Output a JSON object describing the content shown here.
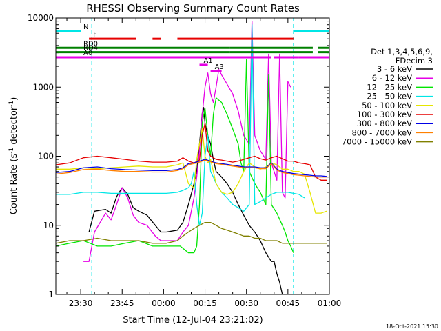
{
  "chart_data": {
    "type": "line",
    "title": "RHESSI Observing Summary Count Rates",
    "xlabel": "Start Time (12-Jul-04 23:21:02)",
    "ylabel_main": "Count Rate (s",
    "ylabel_sup": "-1",
    "ylabel_mid": " detector",
    "ylabel_sup2": "-1",
    "ylabel_end": ")",
    "x_unit": "minutes from 23:21:02",
    "xlim": [
      0,
      99
    ],
    "ylim": [
      1,
      10000
    ],
    "y_scale": "log",
    "x_ticks": [
      {
        "x": 9,
        "label": "23:30"
      },
      {
        "x": 24,
        "label": "23:45"
      },
      {
        "x": 39,
        "label": "00:00"
      },
      {
        "x": 54,
        "label": "00:15"
      },
      {
        "x": 69,
        "label": "00:30"
      },
      {
        "x": 84,
        "label": "00:45"
      },
      {
        "x": 99,
        "label": "01:00"
      }
    ],
    "y_ticks": [
      {
        "y": 1,
        "label": "1"
      },
      {
        "y": 10,
        "label": "10"
      },
      {
        "y": 100,
        "label": "100"
      },
      {
        "y": 1000,
        "label": "1000"
      },
      {
        "y": 10000,
        "label": "10000"
      }
    ],
    "legend": {
      "placement": "right",
      "header1": "Det 1,3,4,5,6,9,",
      "header2": "FDecim 3"
    },
    "series": [
      {
        "name": "3 - 6 keV",
        "color": "#000000",
        "x": [
          0,
          10,
          12,
          14,
          18,
          20,
          22,
          24,
          26,
          28,
          30,
          33,
          36,
          38,
          40,
          44,
          46,
          48,
          50,
          51,
          52,
          53,
          53.5,
          54,
          55,
          56,
          57,
          58,
          60,
          62,
          64,
          66,
          68,
          70,
          72,
          74,
          76,
          78,
          79,
          80,
          81,
          82,
          83,
          84,
          85,
          86,
          88,
          90,
          92,
          95,
          98
        ],
        "y": [
          null,
          null,
          8,
          16,
          17,
          15,
          26,
          35,
          28,
          18,
          16,
          14,
          10,
          8,
          8,
          8.5,
          11,
          20,
          40,
          60,
          150,
          420,
          510,
          300,
          200,
          150,
          90,
          60,
          50,
          40,
          30,
          20,
          14,
          10,
          8,
          6,
          4,
          3,
          3,
          2,
          1.5,
          1,
          1,
          null,
          null,
          null,
          null,
          null,
          null,
          null,
          null
        ]
      },
      {
        "name": "6 - 12 keV",
        "color": "#e600e6",
        "x": [
          0,
          10,
          12,
          14,
          18,
          20,
          22,
          24,
          26,
          28,
          30,
          33,
          36,
          38,
          40,
          44,
          46,
          48,
          50,
          51,
          52,
          53,
          54,
          55,
          56,
          57,
          58,
          59,
          60,
          62,
          64,
          66,
          68,
          70,
          71,
          72,
          74,
          76,
          77,
          78,
          79,
          80,
          81,
          82,
          83,
          84,
          85,
          86,
          88,
          90,
          92,
          95,
          98
        ],
        "y": [
          null,
          3,
          3,
          8,
          15,
          12,
          20,
          35,
          25,
          14,
          11,
          10,
          7,
          6,
          6,
          6,
          8,
          10,
          25,
          50,
          120,
          400,
          1000,
          1600,
          800,
          600,
          1000,
          1800,
          1500,
          1100,
          800,
          450,
          200,
          150,
          9000,
          200,
          120,
          90,
          3000,
          80,
          60,
          45,
          3000,
          30,
          25,
          1200,
          1000,
          null,
          null,
          null,
          null,
          null,
          null
        ]
      },
      {
        "name": "12 - 25 keV",
        "color": "#00e600",
        "x": [
          0,
          5,
          10,
          15,
          20,
          25,
          30,
          35,
          40,
          45,
          48,
          50,
          51,
          52,
          53,
          54,
          55,
          56,
          57,
          58,
          60,
          62,
          64,
          66,
          67,
          68,
          69,
          70,
          72,
          74,
          76,
          77,
          78,
          80,
          82,
          83,
          84,
          85,
          86,
          88,
          90,
          92,
          95,
          98
        ],
        "y": [
          5,
          5.5,
          6,
          5,
          5,
          5.5,
          6,
          5,
          5,
          5,
          4,
          4,
          5,
          20,
          300,
          500,
          200,
          100,
          400,
          700,
          600,
          400,
          250,
          150,
          80,
          60,
          2500,
          60,
          40,
          30,
          20,
          1500,
          20,
          15,
          10,
          8,
          6,
          5,
          4,
          null,
          null,
          null,
          null,
          null
        ]
      },
      {
        "name": "25 - 50 keV",
        "color": "#00e6e6",
        "x": [
          0,
          5,
          10,
          15,
          20,
          25,
          30,
          35,
          40,
          44,
          46,
          48,
          49,
          50,
          51,
          52,
          53,
          54,
          55,
          56,
          57,
          58,
          60,
          62,
          64,
          66,
          68,
          70,
          71,
          72,
          74,
          76,
          78,
          80,
          84,
          88,
          90,
          92,
          95,
          98
        ],
        "y": [
          28,
          28,
          30,
          30,
          29,
          29,
          29,
          29,
          29,
          30,
          32,
          35,
          40,
          60,
          20,
          10,
          15,
          100,
          200,
          60,
          50,
          40,
          30,
          25,
          20,
          18,
          16,
          20,
          8000,
          20,
          22,
          25,
          28,
          30,
          30,
          28,
          25,
          null,
          null,
          null
        ]
      },
      {
        "name": "50 - 100 keV",
        "color": "#e6e600",
        "x": [
          0,
          5,
          10,
          15,
          20,
          25,
          30,
          35,
          40,
          44,
          46,
          48,
          50,
          51,
          52,
          53,
          54,
          55,
          56,
          57,
          58,
          60,
          62,
          64,
          66,
          68,
          70,
          72,
          74,
          76,
          78,
          80,
          82,
          84,
          86,
          88,
          90,
          92,
          94,
          96,
          98
        ],
        "y": [
          65,
          65,
          68,
          66,
          68,
          70,
          72,
          70,
          70,
          75,
          80,
          40,
          35,
          90,
          150,
          250,
          100,
          80,
          90,
          60,
          40,
          30,
          28,
          30,
          40,
          60,
          80,
          70,
          65,
          70,
          80,
          75,
          65,
          65,
          60,
          60,
          55,
          30,
          15,
          15,
          16
        ]
      },
      {
        "name": "100 - 300 keV",
        "color": "#e60000",
        "x": [
          0,
          5,
          10,
          15,
          20,
          25,
          30,
          35,
          40,
          44,
          46,
          48,
          50,
          52,
          53,
          54,
          55,
          56,
          57,
          58,
          60,
          62,
          64,
          66,
          68,
          70,
          72,
          74,
          76,
          78,
          80,
          82,
          84,
          86,
          88,
          90,
          92,
          94,
          96,
          98
        ],
        "y": [
          75,
          80,
          95,
          100,
          95,
          90,
          85,
          82,
          82,
          85,
          95,
          85,
          80,
          88,
          200,
          300,
          120,
          100,
          95,
          90,
          88,
          85,
          82,
          85,
          90,
          95,
          100,
          92,
          88,
          95,
          100,
          92,
          85,
          85,
          80,
          78,
          75,
          50,
          45,
          45
        ]
      },
      {
        "name": "300 - 800 keV",
        "color": "#0000e6",
        "x": [
          0,
          5,
          10,
          15,
          20,
          25,
          30,
          35,
          40,
          44,
          46,
          48,
          50,
          52,
          54,
          56,
          58,
          60,
          62,
          64,
          66,
          68,
          70,
          72,
          74,
          76,
          78,
          80,
          82,
          84,
          86,
          88,
          90,
          92,
          94,
          96,
          98
        ],
        "y": [
          58,
          60,
          68,
          70,
          66,
          64,
          63,
          62,
          62,
          64,
          68,
          78,
          80,
          85,
          90,
          85,
          80,
          78,
          76,
          74,
          72,
          70,
          70,
          70,
          68,
          68,
          80,
          65,
          60,
          58,
          56,
          55,
          54,
          53,
          52,
          52,
          51
        ]
      },
      {
        "name": "800 - 7000 keV",
        "color": "#ff8000",
        "x": [
          0,
          5,
          10,
          15,
          20,
          25,
          30,
          35,
          40,
          44,
          46,
          48,
          50,
          52,
          54,
          56,
          58,
          60,
          62,
          64,
          66,
          68,
          70,
          72,
          74,
          76,
          78,
          80,
          82,
          84,
          86,
          88,
          90,
          92,
          94,
          96,
          98
        ],
        "y": [
          55,
          58,
          64,
          65,
          62,
          60,
          60,
          59,
          59,
          62,
          66,
          75,
          78,
          82,
          88,
          83,
          78,
          76,
          74,
          72,
          70,
          68,
          68,
          68,
          66,
          66,
          78,
          63,
          58,
          56,
          54,
          53,
          52,
          51,
          50,
          50,
          50
        ]
      },
      {
        "name": "7000 - 15000 keV",
        "color": "#808000",
        "x": [
          0,
          5,
          10,
          15,
          20,
          25,
          30,
          35,
          40,
          44,
          46,
          48,
          50,
          52,
          54,
          56,
          58,
          60,
          62,
          64,
          66,
          68,
          70,
          72,
          74,
          76,
          78,
          80,
          82,
          84,
          86,
          88,
          90,
          92,
          94,
          96,
          98
        ],
        "y": [
          5.5,
          6,
          6,
          6.5,
          6,
          6,
          6,
          5.5,
          5.5,
          6,
          7,
          8,
          9,
          10,
          11,
          11,
          10,
          9,
          8.5,
          8,
          7.5,
          7,
          7,
          6.5,
          6.5,
          6,
          6,
          6,
          5.5,
          5.5,
          5.5,
          5.5,
          5.5,
          5.5,
          5.5,
          5.5,
          5.5
        ]
      }
    ],
    "state_bars": [
      {
        "label": "N",
        "color": "#00e6e6",
        "level": 6500,
        "segments": [
          [
            0,
            9
          ],
          [
            86,
            99
          ]
        ]
      },
      {
        "label": "F",
        "color": "#e60000",
        "level": 5000,
        "segments": [
          [
            12,
            29
          ],
          [
            35,
            38
          ],
          [
            44,
            86
          ]
        ]
      },
      {
        "label": "RD0",
        "color": "#008000",
        "level": 3700,
        "segments": [
          [
            0,
            63
          ],
          [
            63,
            93
          ],
          [
            95,
            99
          ]
        ]
      },
      {
        "label": "RD4",
        "color": "#008000",
        "level": 3200,
        "segments": [
          [
            0,
            63
          ],
          [
            63,
            93
          ],
          [
            95,
            99
          ]
        ]
      },
      {
        "label": "A0",
        "color": "#e600e6",
        "level": 2700,
        "segments": [
          [
            0,
            55
          ],
          [
            55,
            78
          ],
          [
            79,
            88
          ],
          [
            88,
            99
          ]
        ]
      },
      {
        "label": "A1",
        "color": "#e600e6",
        "level": 2100,
        "segments": [
          [
            52,
            55
          ]
        ]
      },
      {
        "label": "A3",
        "color": "#e600e6",
        "level": 1700,
        "segments": [
          [
            56,
            60
          ]
        ]
      }
    ],
    "dashed_markers": {
      "color": "#00e6e6",
      "x": [
        13,
        86,
        99
      ]
    },
    "timestamp": "18-Oct-2021 15:30"
  }
}
